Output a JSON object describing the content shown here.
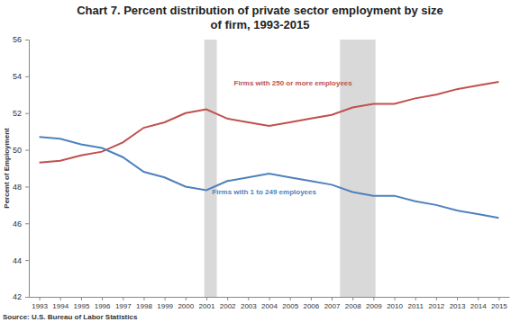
{
  "chart_data": {
    "type": "line",
    "title": "Chart 7. Percent distribution of private sector employment by size of firm, 1993-2015",
    "y_label": "Percent of Employment",
    "source": "Source: U.S. Bureau of Labor Statistics",
    "x": [
      1993,
      1994,
      1995,
      1996,
      1997,
      1998,
      1999,
      2000,
      2001,
      2002,
      2003,
      2004,
      2005,
      2006,
      2007,
      2008,
      2009,
      2010,
      2011,
      2012,
      2013,
      2014,
      2015
    ],
    "xlim": [
      1992.5,
      2015.5
    ],
    "xticks": [
      1993,
      1994,
      1995,
      1996,
      1997,
      1998,
      1999,
      2000,
      2001,
      2002,
      2003,
      2004,
      2005,
      2006,
      2007,
      2008,
      2009,
      2010,
      2011,
      2012,
      2013,
      2014,
      2015
    ],
    "ylim": [
      42,
      56
    ],
    "yticks": [
      42,
      44,
      46,
      48,
      50,
      52,
      54,
      56
    ],
    "grid": false,
    "shaded": [
      [
        2000.9,
        2001.5
      ],
      [
        2007.4,
        2009.1
      ]
    ],
    "series": [
      {
        "name": "Firms with 250 or more employees",
        "color": "#c0504d",
        "values": [
          49.3,
          49.4,
          49.7,
          49.9,
          50.4,
          51.2,
          51.5,
          52.0,
          52.2,
          51.7,
          51.5,
          51.3,
          51.5,
          51.7,
          51.9,
          52.3,
          52.5,
          52.5,
          52.8,
          53.0,
          53.3,
          53.5,
          53.7
        ]
      },
      {
        "name": "Firms with 1 to 249 employees",
        "color": "#4f81bd",
        "values": [
          50.7,
          50.6,
          50.3,
          50.1,
          49.6,
          48.8,
          48.5,
          48.0,
          47.8,
          48.3,
          48.5,
          48.7,
          48.5,
          48.3,
          48.1,
          47.7,
          47.5,
          47.5,
          47.2,
          47.0,
          46.7,
          46.5,
          46.3
        ]
      }
    ]
  }
}
